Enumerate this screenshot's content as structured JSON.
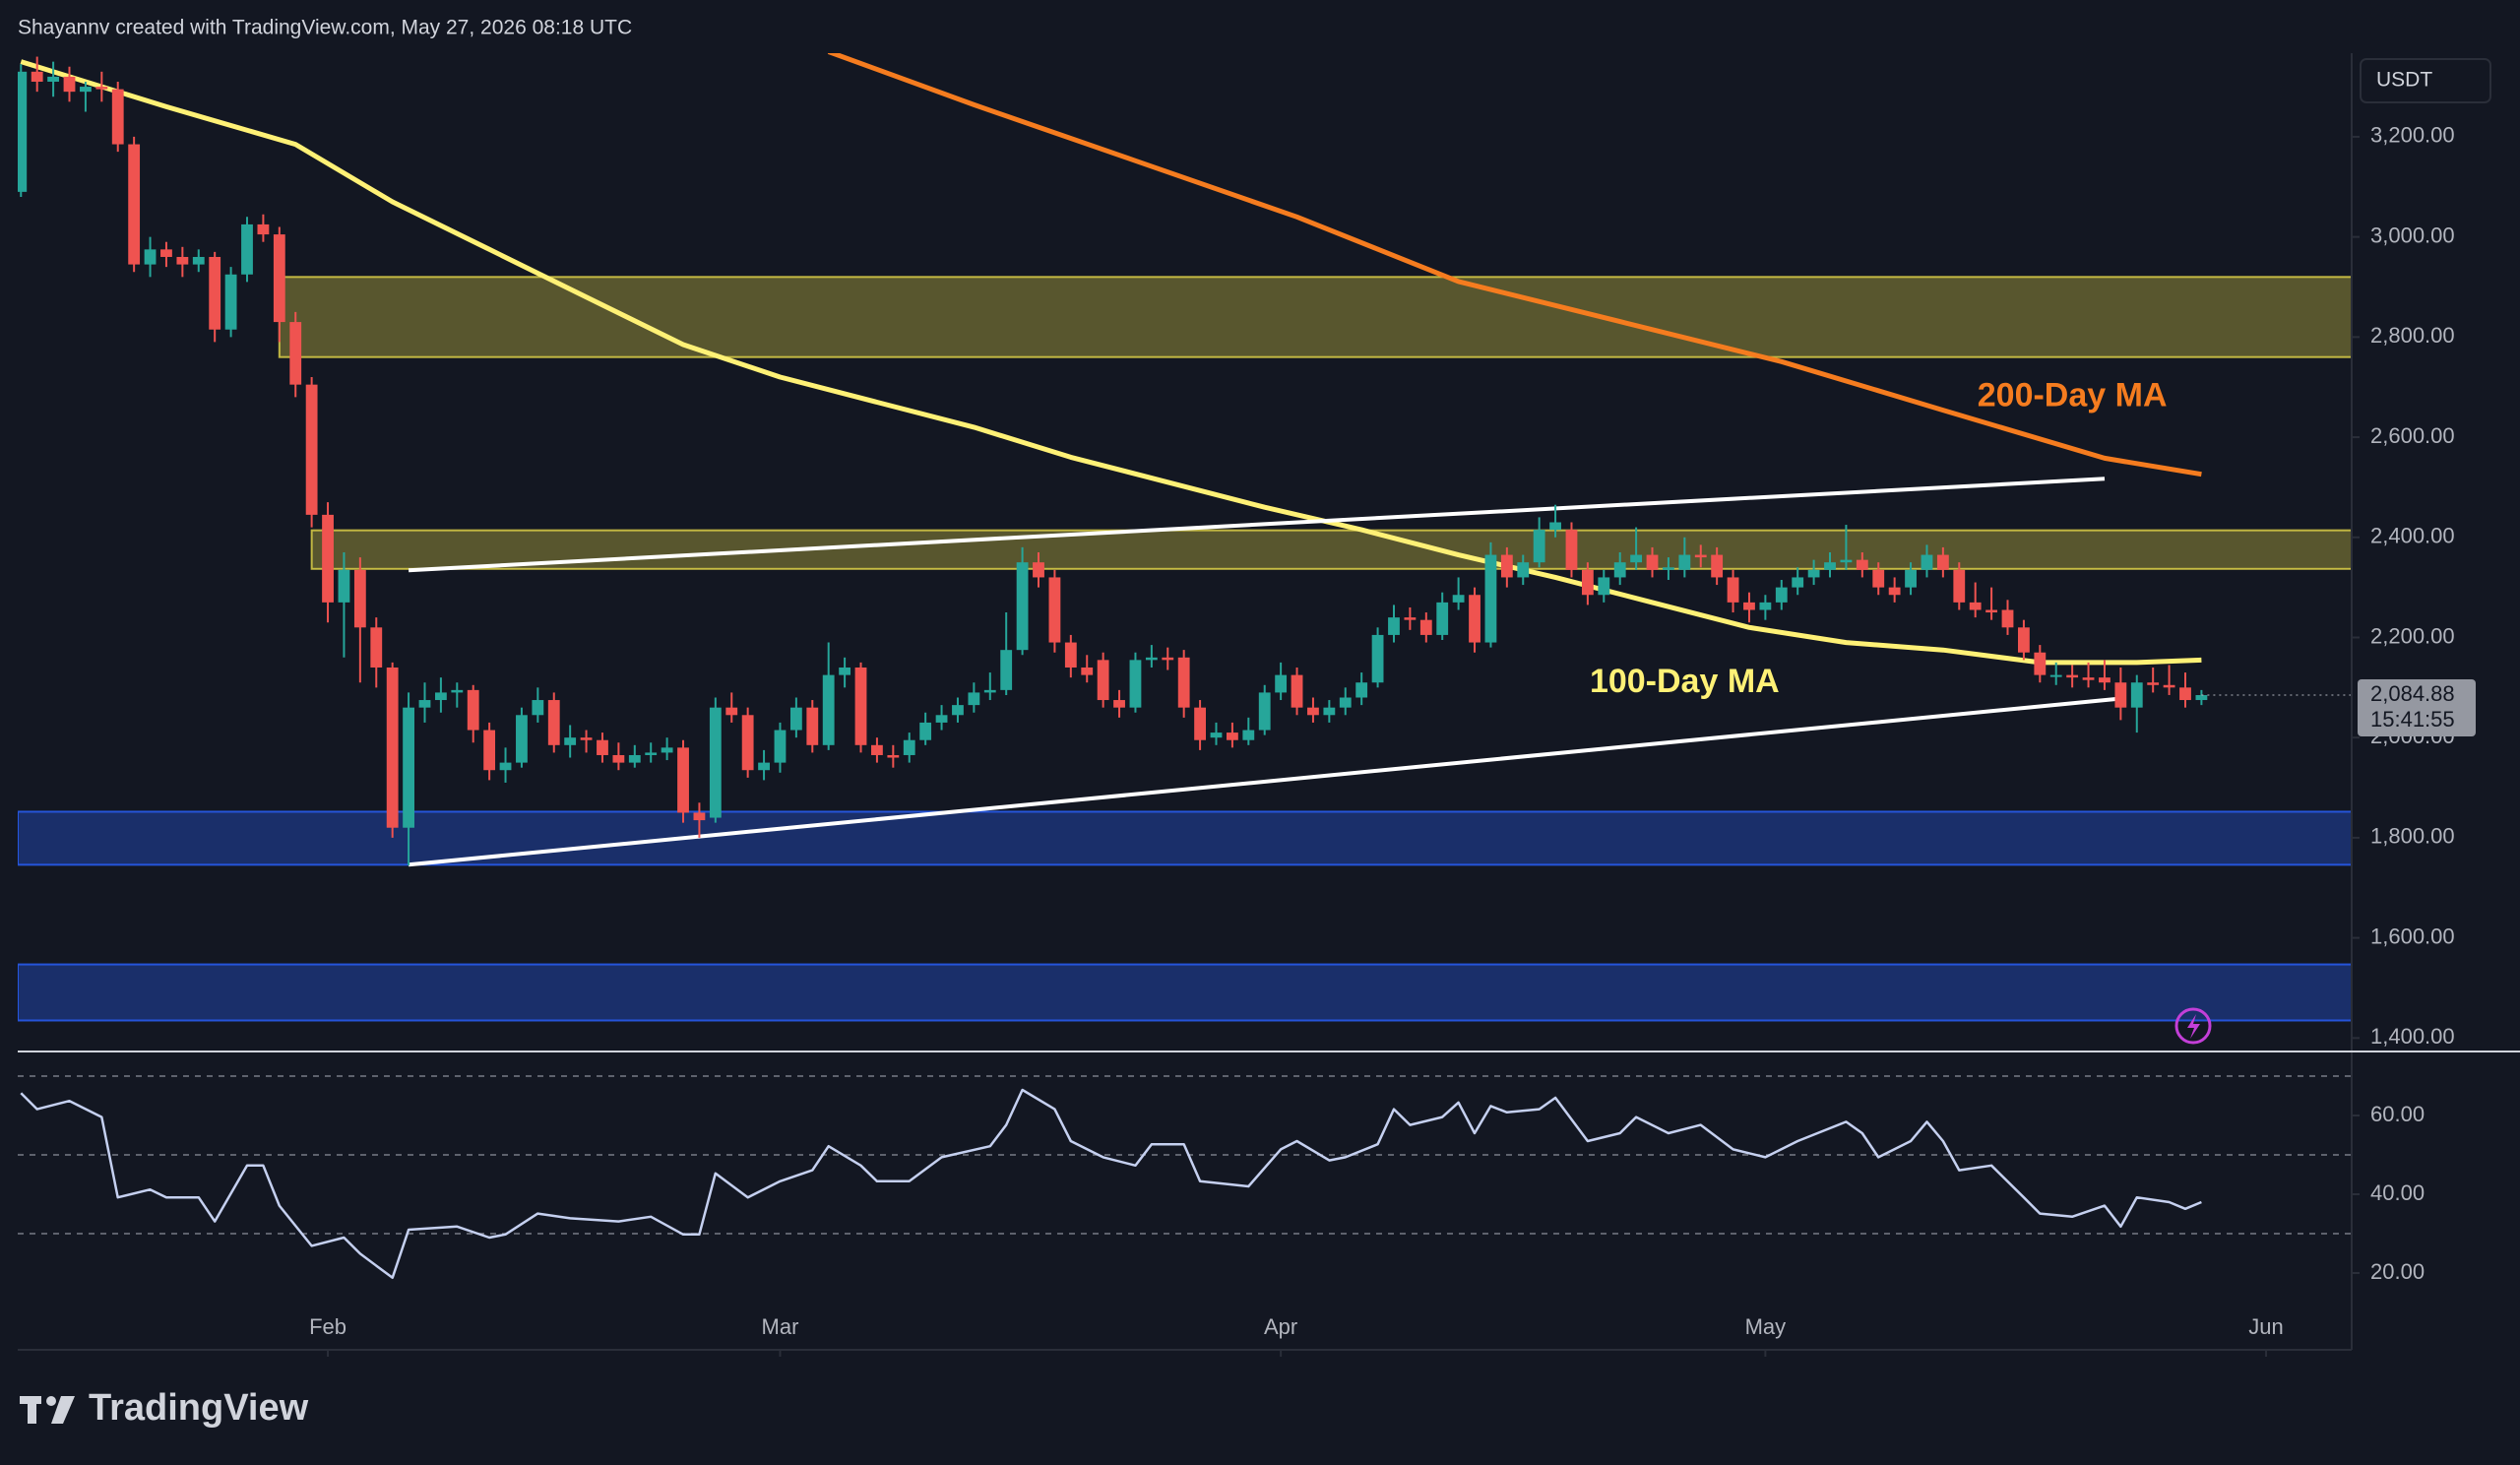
{
  "header": "Shayannv created with TradingView.com, May 27, 2026 08:18 UTC",
  "brand": "TradingView",
  "chart_data": {
    "type": "candlestick",
    "currency": "USDT",
    "up_color": "#26a69a",
    "down_color": "#ef5350",
    "xlim": [
      -0.2,
      144.3
    ],
    "xticks": [
      {
        "value": 19,
        "label": "Feb"
      },
      {
        "value": 47,
        "label": "Mar"
      },
      {
        "value": 78,
        "label": "Apr"
      },
      {
        "value": 108,
        "label": "May"
      },
      {
        "value": 139,
        "label": "Jun"
      }
    ],
    "ylim": [
      1377,
      3367
    ],
    "yticks": [
      {
        "value": 1400,
        "label": "1,400.00"
      },
      {
        "value": 1600,
        "label": "1,600.00"
      },
      {
        "value": 1800,
        "label": "1,800.00"
      },
      {
        "value": 2000,
        "label": "2,000.00"
      },
      {
        "value": 2200,
        "label": "2,200.00"
      },
      {
        "value": 2400,
        "label": "2,400.00"
      },
      {
        "value": 2600,
        "label": "2,600.00"
      },
      {
        "value": 2800,
        "label": "2,800.00"
      },
      {
        "value": 3000,
        "label": "3,000.00"
      },
      {
        "value": 3200,
        "label": "3,200.00"
      }
    ],
    "ohlc": [
      [
        3090,
        3345,
        3080,
        3330
      ],
      [
        3330,
        3360,
        3290,
        3310
      ],
      [
        3310,
        3350,
        3280,
        3320
      ],
      [
        3320,
        3340,
        3270,
        3290
      ],
      [
        3290,
        3310,
        3250,
        3300
      ],
      [
        3300,
        3330,
        3270,
        3295
      ],
      [
        3295,
        3310,
        3170,
        3185
      ],
      [
        3185,
        3200,
        2930,
        2945
      ],
      [
        2945,
        3000,
        2920,
        2975
      ],
      [
        2975,
        2990,
        2940,
        2960
      ],
      [
        2960,
        2980,
        2920,
        2945
      ],
      [
        2945,
        2975,
        2930,
        2960
      ],
      [
        2960,
        2970,
        2790,
        2815
      ],
      [
        2815,
        2940,
        2800,
        2925
      ],
      [
        2925,
        3040,
        2910,
        3025
      ],
      [
        3025,
        3045,
        2990,
        3005
      ],
      [
        3005,
        3020,
        2790,
        2830
      ],
      [
        2830,
        2850,
        2680,
        2705
      ],
      [
        2705,
        2720,
        2420,
        2445
      ],
      [
        2445,
        2470,
        2230,
        2270
      ],
      [
        2270,
        2370,
        2160,
        2335
      ],
      [
        2335,
        2360,
        2110,
        2220
      ],
      [
        2220,
        2240,
        2100,
        2140
      ],
      [
        2140,
        2150,
        1800,
        1820
      ],
      [
        1820,
        2090,
        1745,
        2060
      ],
      [
        2060,
        2110,
        2030,
        2075
      ],
      [
        2075,
        2120,
        2050,
        2090
      ],
      [
        2090,
        2110,
        2060,
        2095
      ],
      [
        2095,
        2105,
        1990,
        2015
      ],
      [
        2015,
        2030,
        1915,
        1935
      ],
      [
        1935,
        1980,
        1910,
        1950
      ],
      [
        1950,
        2060,
        1940,
        2045
      ],
      [
        2045,
        2100,
        2030,
        2075
      ],
      [
        2075,
        2090,
        1970,
        1985
      ],
      [
        1985,
        2025,
        1960,
        2000
      ],
      [
        2000,
        2015,
        1970,
        1995
      ],
      [
        1995,
        2010,
        1950,
        1965
      ],
      [
        1965,
        1990,
        1935,
        1950
      ],
      [
        1950,
        1985,
        1940,
        1965
      ],
      [
        1965,
        1990,
        1950,
        1970
      ],
      [
        1970,
        2000,
        1955,
        1980
      ],
      [
        1980,
        1995,
        1830,
        1850
      ],
      [
        1850,
        1870,
        1800,
        1835
      ],
      [
        1840,
        2080,
        1830,
        2060
      ],
      [
        2060,
        2090,
        2030,
        2045
      ],
      [
        2045,
        2060,
        1920,
        1935
      ],
      [
        1935,
        1975,
        1915,
        1950
      ],
      [
        1950,
        2030,
        1930,
        2015
      ],
      [
        2015,
        2080,
        2000,
        2060
      ],
      [
        2060,
        2075,
        1970,
        1985
      ],
      [
        1985,
        2190,
        1975,
        2125
      ],
      [
        2125,
        2160,
        2100,
        2140
      ],
      [
        2140,
        2150,
        1970,
        1985
      ],
      [
        1985,
        2000,
        1950,
        1965
      ],
      [
        1965,
        1985,
        1940,
        1960
      ],
      [
        1965,
        2010,
        1950,
        1995
      ],
      [
        1995,
        2050,
        1985,
        2030
      ],
      [
        2030,
        2065,
        2015,
        2045
      ],
      [
        2045,
        2080,
        2030,
        2065
      ],
      [
        2065,
        2110,
        2050,
        2090
      ],
      [
        2090,
        2130,
        2075,
        2095
      ],
      [
        2095,
        2250,
        2085,
        2175
      ],
      [
        2175,
        2380,
        2165,
        2350
      ],
      [
        2350,
        2370,
        2300,
        2320
      ],
      [
        2320,
        2335,
        2170,
        2190
      ],
      [
        2190,
        2205,
        2120,
        2140
      ],
      [
        2140,
        2165,
        2110,
        2125
      ],
      [
        2155,
        2170,
        2060,
        2075
      ],
      [
        2075,
        2095,
        2040,
        2060
      ],
      [
        2060,
        2170,
        2050,
        2155
      ],
      [
        2155,
        2185,
        2140,
        2160
      ],
      [
        2160,
        2180,
        2135,
        2155
      ],
      [
        2160,
        2175,
        2040,
        2060
      ],
      [
        2060,
        2075,
        1975,
        1995
      ],
      [
        2000,
        2030,
        1985,
        2010
      ],
      [
        2010,
        2030,
        1980,
        1995
      ],
      [
        1995,
        2040,
        1985,
        2015
      ],
      [
        2015,
        2105,
        2005,
        2090
      ],
      [
        2090,
        2150,
        2075,
        2125
      ],
      [
        2125,
        2140,
        2045,
        2060
      ],
      [
        2060,
        2080,
        2030,
        2045
      ],
      [
        2045,
        2075,
        2030,
        2060
      ],
      [
        2060,
        2100,
        2045,
        2080
      ],
      [
        2080,
        2130,
        2065,
        2110
      ],
      [
        2110,
        2220,
        2100,
        2205
      ],
      [
        2205,
        2265,
        2190,
        2240
      ],
      [
        2240,
        2260,
        2215,
        2235
      ],
      [
        2235,
        2250,
        2190,
        2205
      ],
      [
        2205,
        2290,
        2195,
        2270
      ],
      [
        2270,
        2320,
        2255,
        2285
      ],
      [
        2285,
        2300,
        2170,
        2190
      ],
      [
        2190,
        2390,
        2180,
        2365
      ],
      [
        2365,
        2380,
        2300,
        2320
      ],
      [
        2320,
        2365,
        2305,
        2350
      ],
      [
        2350,
        2440,
        2340,
        2415
      ],
      [
        2415,
        2465,
        2400,
        2430
      ],
      [
        2415,
        2430,
        2320,
        2335
      ],
      [
        2335,
        2350,
        2265,
        2285
      ],
      [
        2285,
        2335,
        2270,
        2320
      ],
      [
        2320,
        2370,
        2305,
        2350
      ],
      [
        2350,
        2420,
        2335,
        2365
      ],
      [
        2365,
        2380,
        2320,
        2335
      ],
      [
        2335,
        2360,
        2315,
        2340
      ],
      [
        2335,
        2400,
        2320,
        2365
      ],
      [
        2365,
        2385,
        2340,
        2360
      ],
      [
        2365,
        2380,
        2305,
        2320
      ],
      [
        2320,
        2335,
        2250,
        2270
      ],
      [
        2270,
        2290,
        2230,
        2255
      ],
      [
        2255,
        2285,
        2235,
        2270
      ],
      [
        2270,
        2315,
        2255,
        2300
      ],
      [
        2300,
        2340,
        2285,
        2320
      ],
      [
        2320,
        2355,
        2305,
        2335
      ],
      [
        2335,
        2370,
        2320,
        2350
      ],
      [
        2350,
        2425,
        2335,
        2355
      ],
      [
        2355,
        2370,
        2320,
        2335
      ],
      [
        2335,
        2350,
        2285,
        2300
      ],
      [
        2300,
        2320,
        2270,
        2285
      ],
      [
        2300,
        2350,
        2285,
        2335
      ],
      [
        2335,
        2385,
        2320,
        2365
      ],
      [
        2365,
        2380,
        2320,
        2335
      ],
      [
        2335,
        2350,
        2255,
        2270
      ],
      [
        2270,
        2310,
        2240,
        2255
      ],
      [
        2255,
        2300,
        2235,
        2250
      ],
      [
        2255,
        2275,
        2205,
        2220
      ],
      [
        2220,
        2235,
        2155,
        2170
      ],
      [
        2170,
        2185,
        2110,
        2125
      ],
      [
        2125,
        2150,
        2105,
        2125
      ],
      [
        2125,
        2145,
        2100,
        2120
      ],
      [
        2120,
        2150,
        2100,
        2115
      ],
      [
        2120,
        2155,
        2095,
        2110
      ],
      [
        2110,
        2140,
        2035,
        2060
      ],
      [
        2060,
        2125,
        2010,
        2110
      ],
      [
        2110,
        2140,
        2090,
        2105
      ],
      [
        2105,
        2145,
        2085,
        2100
      ],
      [
        2100,
        2130,
        2060,
        2075
      ],
      [
        2075,
        2095,
        2065,
        2084.88
      ]
    ],
    "last_price_label": "2,084.88",
    "countdown": "15:41:55",
    "moving_averages": [
      {
        "name": "100-Day MA",
        "color": "#fff176",
        "x": [
          0,
          9,
          17,
          23,
          29,
          35,
          41,
          47,
          53,
          59,
          65,
          71,
          77,
          83,
          89,
          95,
          101,
          107,
          113,
          119,
          125,
          131,
          135
        ],
        "values": [
          3350,
          3260,
          3185,
          3070,
          2975,
          2880,
          2785,
          2720,
          2670,
          2620,
          2560,
          2510,
          2460,
          2415,
          2365,
          2320,
          2270,
          2220,
          2190,
          2175,
          2150,
          2150,
          2155
        ],
        "label_at": [
          103,
          2108
        ]
      },
      {
        "name": "200-Day MA",
        "color": "#f57c1f",
        "x": [
          50,
          59,
          69,
          79,
          89,
          99,
          109,
          119,
          129,
          135
        ],
        "values": [
          3370,
          3264,
          3152,
          3040,
          2911,
          2831,
          2751,
          2654,
          2558,
          2526
        ],
        "label_at": [
          127,
          2680
        ]
      }
    ],
    "zones": [
      {
        "from": 16,
        "top": 2920,
        "bottom": 2760,
        "color": "#e6d84a"
      },
      {
        "from": 18,
        "top": 2414,
        "bottom": 2337,
        "color": "#e6d84a"
      },
      {
        "from": -0.2,
        "top": 1852,
        "bottom": 1746,
        "color": "#2962ff"
      },
      {
        "from": -0.2,
        "top": 1547,
        "bottom": 1435,
        "color": "#2962ff"
      }
    ],
    "trendlines": [
      {
        "x": [
          24,
          129
        ],
        "values": [
          2334,
          2517
        ]
      },
      {
        "x": [
          24,
          129.7
        ],
        "values": [
          1746,
          2077
        ]
      }
    ],
    "rsi": {
      "ylim": [
        13.5,
        75.5
      ],
      "yticks": [
        {
          "value": 20,
          "label": "20.00"
        },
        {
          "value": 40,
          "label": "40.00"
        },
        {
          "value": 60,
          "label": "60.00"
        }
      ],
      "levels": [
        30,
        50,
        70
      ],
      "color": "#c5d0f0",
      "x": [
        0,
        1,
        3,
        5,
        6,
        8,
        9,
        11,
        12,
        14,
        15,
        16,
        18,
        20,
        21,
        23,
        24,
        27,
        29,
        30,
        32,
        34,
        37,
        39,
        41,
        42,
        43,
        45,
        47,
        49,
        50,
        52,
        53,
        55,
        57,
        60,
        61,
        62,
        64,
        65,
        67,
        69,
        70,
        72,
        73,
        76,
        78,
        79,
        81,
        82,
        84,
        85,
        86,
        88,
        89,
        90,
        91,
        92,
        94,
        95,
        97,
        99,
        100,
        102,
        104,
        106,
        108,
        110,
        113,
        114,
        115,
        117,
        118,
        119,
        120,
        122,
        124,
        125,
        127,
        129,
        130,
        131,
        133,
        134,
        135
      ],
      "values": [
        65.7,
        61.6,
        63.7,
        59.6,
        39.2,
        41.2,
        39.2,
        39.2,
        33.1,
        47.3,
        47.3,
        37.1,
        26.9,
        29.0,
        24.9,
        18.8,
        31.0,
        31.8,
        29.0,
        29.8,
        35.1,
        33.9,
        33.1,
        34.3,
        29.8,
        29.8,
        45.3,
        39.2,
        43.3,
        46.1,
        52.2,
        47.3,
        43.3,
        43.3,
        49.4,
        52.2,
        57.6,
        66.5,
        61.6,
        53.5,
        49.4,
        47.3,
        52.7,
        52.7,
        43.3,
        42.0,
        51.4,
        53.5,
        48.6,
        49.4,
        52.7,
        61.6,
        57.6,
        59.6,
        63.3,
        55.5,
        62.4,
        60.8,
        61.6,
        64.5,
        53.5,
        55.5,
        59.6,
        55.5,
        57.6,
        51.4,
        49.4,
        53.5,
        58.4,
        55.5,
        49.4,
        53.5,
        58.4,
        53.5,
        46.1,
        47.3,
        39.2,
        35.1,
        34.3,
        37.1,
        31.8,
        39.2,
        38.0,
        36.3,
        38.0
      ]
    }
  }
}
